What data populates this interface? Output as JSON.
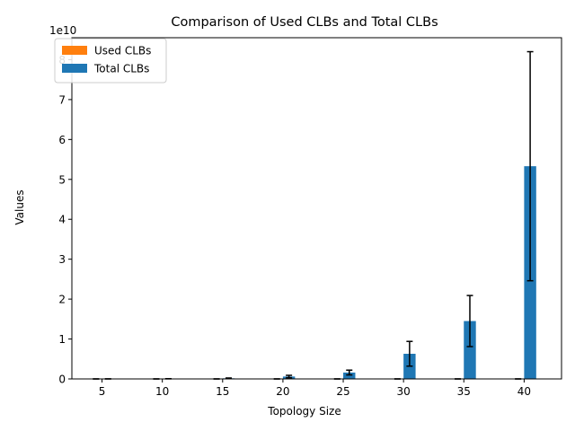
{
  "chart_data": {
    "type": "bar",
    "title": "Comparison of Used CLBs and Total CLBs",
    "xlabel": "Topology Size",
    "ylabel": "Values",
    "y_offset_label": "1e10",
    "categories": [
      5,
      10,
      15,
      20,
      25,
      30,
      35,
      40
    ],
    "xticks": [
      "5",
      "10",
      "15",
      "20",
      "25",
      "30",
      "35",
      "40"
    ],
    "yticks": [
      "0",
      "1",
      "2",
      "3",
      "4",
      "5",
      "6",
      "7",
      "8"
    ],
    "ylim": [
      0,
      85500000000.0
    ],
    "xlim": [
      2.5,
      43.1
    ],
    "legend_position": "upper left",
    "series": [
      {
        "name": "Used CLBs",
        "color": "#ff7f0e",
        "values": [
          0,
          0,
          0,
          0,
          0,
          0,
          0,
          0
        ],
        "errors": [
          0,
          0,
          0,
          0,
          0,
          0,
          0,
          0
        ]
      },
      {
        "name": "Total CLBs",
        "color": "#1f77b4",
        "values": [
          10000000.0,
          40000000.0,
          150000000.0,
          600000000.0,
          1600000000.0,
          6300000000.0,
          14500000000.0,
          53300000000.0
        ],
        "errors": [
          5000000.0,
          20000000.0,
          80000000.0,
          300000000.0,
          600000000.0,
          3100000000.0,
          6400000000.0,
          28700000000.0
        ]
      }
    ]
  }
}
